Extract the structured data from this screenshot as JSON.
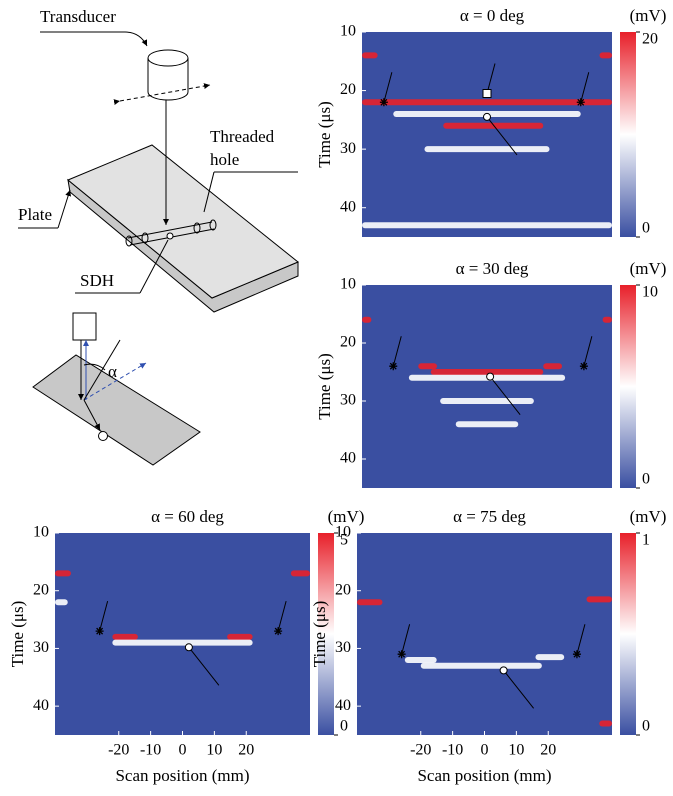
{
  "diagram": {
    "transducer": "Transducer",
    "threaded_hole": [
      "Threaded",
      "hole"
    ],
    "plate": "Plate",
    "sdh": "SDH",
    "angle": "α"
  },
  "chart_data": [
    {
      "type": "heatmap",
      "title": "α = 0 deg",
      "colorbar_label": "(mV)",
      "clim": [
        0,
        20
      ],
      "colorbar_ticks": [
        0,
        20
      ],
      "colormap": [
        "#3a4fa1",
        "#ffffff",
        "#e8202a"
      ],
      "ylabel": "Time (μs)",
      "ylim": [
        10,
        45
      ],
      "y_inverted": true,
      "yticks": [
        10,
        20,
        30,
        40
      ],
      "xlim": [
        -40,
        40
      ],
      "bands": [
        {
          "x": [
            -40,
            40
          ],
          "y": 22,
          "color": "#e8202a"
        },
        {
          "x": [
            -14,
            18
          ],
          "y": 26,
          "color": "#e8202a"
        },
        {
          "x": [
            -40,
            -35
          ],
          "y": 14,
          "color": "#e8202a"
        },
        {
          "x": [
            36,
            40
          ],
          "y": 14,
          "color": "#e8202a"
        },
        {
          "x": [
            -30,
            30
          ],
          "y": 24,
          "color": "#ffffff"
        },
        {
          "x": [
            -20,
            20
          ],
          "y": 30,
          "color": "#ffffff"
        },
        {
          "x": [
            -40,
            40
          ],
          "y": 43,
          "color": "#ffffff"
        }
      ]
    },
    {
      "type": "heatmap",
      "title": "α = 30 deg",
      "colorbar_label": "(mV)",
      "clim": [
        0,
        10
      ],
      "colorbar_ticks": [
        0,
        10
      ],
      "colormap": [
        "#3a4fa1",
        "#ffffff",
        "#e8202a"
      ],
      "ylabel": "Time (μs)",
      "ylim": [
        10,
        45
      ],
      "y_inverted": true,
      "yticks": [
        10,
        20,
        30,
        40
      ],
      "xlim": [
        -40,
        40
      ],
      "bands": [
        {
          "x": [
            -40,
            -37
          ],
          "y": 16,
          "color": "#e8202a"
        },
        {
          "x": [
            37,
            40
          ],
          "y": 16,
          "color": "#e8202a"
        },
        {
          "x": [
            -18,
            18
          ],
          "y": 25,
          "color": "#e8202a"
        },
        {
          "x": [
            -22,
            -16
          ],
          "y": 24,
          "color": "#e8202a"
        },
        {
          "x": [
            18,
            24
          ],
          "y": 24,
          "color": "#e8202a"
        },
        {
          "x": [
            -25,
            25
          ],
          "y": 26,
          "color": "#ffffff"
        },
        {
          "x": [
            -15,
            15
          ],
          "y": 30,
          "color": "#ffffff"
        },
        {
          "x": [
            -10,
            10
          ],
          "y": 34,
          "color": "#ffffff"
        }
      ]
    },
    {
      "type": "heatmap",
      "title": "α = 60 deg",
      "colorbar_label": "(mV)",
      "clim": [
        0,
        5
      ],
      "colorbar_ticks": [
        0,
        5
      ],
      "colormap": [
        "#3a4fa1",
        "#ffffff",
        "#e8202a"
      ],
      "ylabel": "Time (μs)",
      "ylim": [
        10,
        45
      ],
      "y_inverted": true,
      "yticks": [
        10,
        20,
        30,
        40
      ],
      "xlim": [
        -40,
        40
      ],
      "xticks": [
        -20,
        -10,
        0,
        10,
        20
      ],
      "xlabel": "Scan position (mm)",
      "bands": [
        {
          "x": [
            -40,
            -35
          ],
          "y": 17,
          "color": "#e8202a"
        },
        {
          "x": [
            34,
            40
          ],
          "y": 17,
          "color": "#e8202a"
        },
        {
          "x": [
            -22,
            -14
          ],
          "y": 28,
          "color": "#e8202a"
        },
        {
          "x": [
            14,
            22
          ],
          "y": 28,
          "color": "#e8202a"
        },
        {
          "x": [
            -22,
            22
          ],
          "y": 29,
          "color": "#ffffff"
        },
        {
          "x": [
            -40,
            -36
          ],
          "y": 22,
          "color": "#ffffff"
        }
      ]
    },
    {
      "type": "heatmap",
      "title": "α = 75 deg",
      "colorbar_label": "(mV)",
      "clim": [
        0,
        1
      ],
      "colorbar_ticks": [
        0,
        1
      ],
      "colormap": [
        "#3a4fa1",
        "#ffffff",
        "#e8202a"
      ],
      "ylabel": "Time (μs)",
      "ylim": [
        10,
        45
      ],
      "y_inverted": true,
      "yticks": [
        10,
        20,
        30,
        40
      ],
      "xlim": [
        -40,
        40
      ],
      "xticks": [
        -20,
        -10,
        0,
        10,
        20
      ],
      "xlabel": "Scan position (mm)",
      "bands": [
        {
          "x": [
            -40,
            -32
          ],
          "y": 22,
          "color": "#e8202a"
        },
        {
          "x": [
            32,
            40
          ],
          "y": 21.5,
          "color": "#e8202a"
        },
        {
          "x": [
            -20,
            18
          ],
          "y": 33,
          "color": "#ffffff"
        },
        {
          "x": [
            -25,
            -15
          ],
          "y": 32,
          "color": "#ffffff"
        },
        {
          "x": [
            16,
            25
          ],
          "y": 31.5,
          "color": "#ffffff"
        },
        {
          "x": [
            36,
            40
          ],
          "y": 43,
          "color": "#e8202a"
        }
      ]
    }
  ]
}
